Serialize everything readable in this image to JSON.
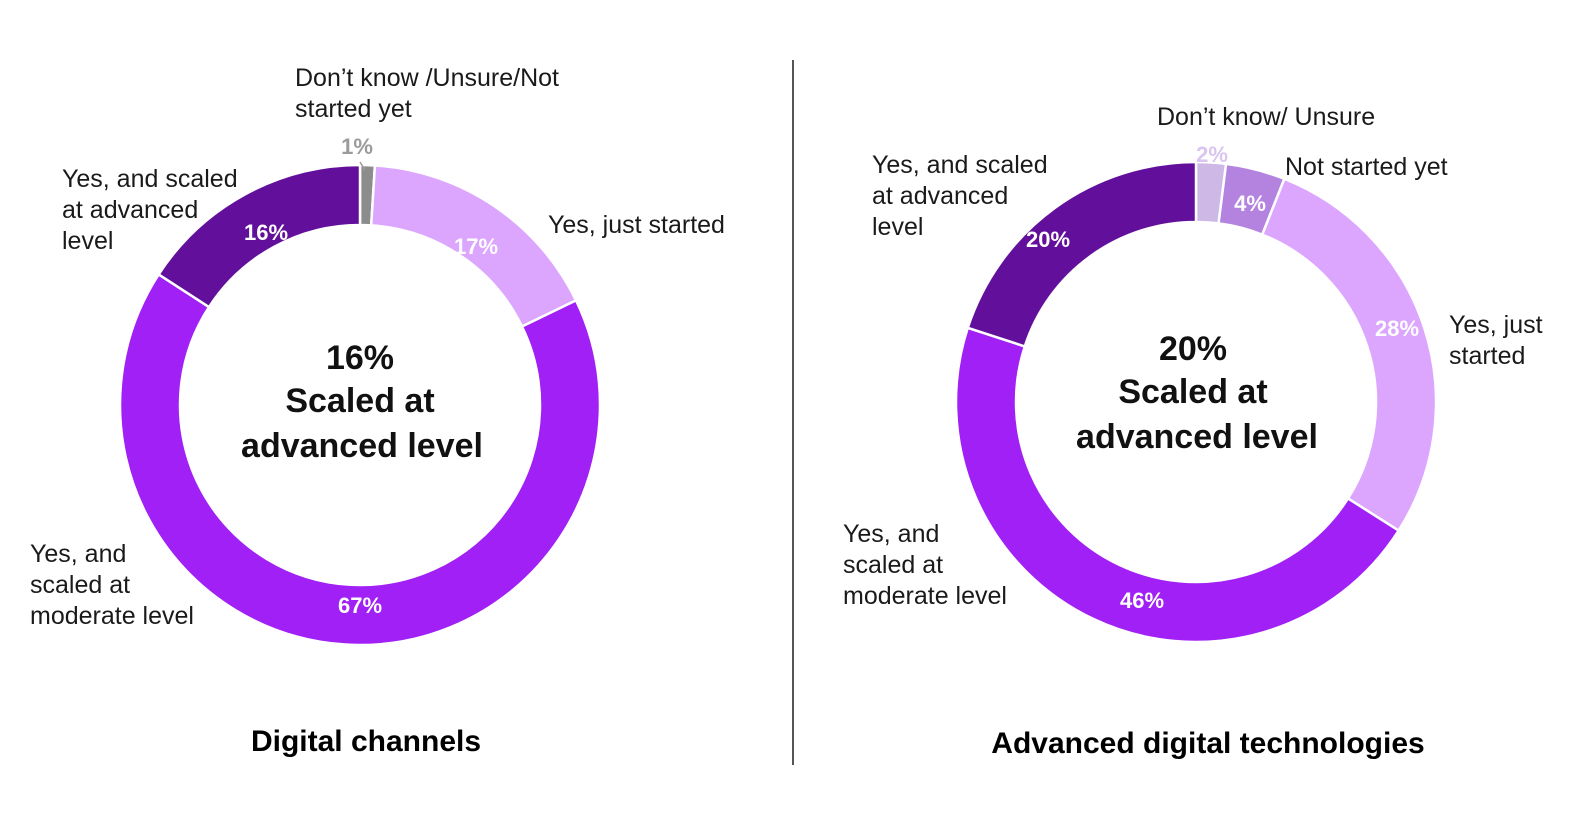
{
  "chart_data": [
    {
      "type": "pie",
      "title": "Digital channels",
      "center_value": "16%",
      "center_caption_line1": "Scaled at",
      "center_caption_line2": "advanced level",
      "slices": [
        {
          "key": "dontknow",
          "value": 1,
          "label_text": "1%",
          "name_lines": [
            "Don’t know /Unsure/Not",
            "started yet"
          ],
          "color": "#8c8c8c",
          "label_color": "#9b9b9b"
        },
        {
          "key": "juststarted",
          "value": 17,
          "label_text": "17%",
          "name_lines": [
            "Yes, just started"
          ],
          "color": "#dca6ff",
          "label_color": "#ffffff"
        },
        {
          "key": "moderate",
          "value": 67,
          "label_text": "67%",
          "name_lines": [
            "Yes, and",
            "scaled at",
            "moderate level"
          ],
          "color": "#a020f5",
          "label_color": "#ffffff"
        },
        {
          "key": "advanced",
          "value": 16,
          "label_text": "16%",
          "name_lines": [
            "Yes, and scaled",
            "at advanced",
            "level"
          ],
          "color": "#62109b",
          "label_color": "#ffffff"
        }
      ]
    },
    {
      "type": "pie",
      "title": "Advanced digital technologies",
      "center_value": "20%",
      "center_caption_line1": "Scaled at",
      "center_caption_line2": "advanced level",
      "slices": [
        {
          "key": "dontknow",
          "value": 2,
          "label_text": "2%",
          "name_lines": [
            "Don’t know/ Unsure"
          ],
          "color": "#cdb8e6",
          "label_color": "#d9c4f2"
        },
        {
          "key": "notstarted",
          "value": 4,
          "label_text": "4%",
          "name_lines": [
            "Not started yet"
          ],
          "color": "#b483e0",
          "label_color": "#ffffff"
        },
        {
          "key": "juststarted",
          "value": 28,
          "label_text": "28%",
          "name_lines": [
            "Yes, just",
            "started"
          ],
          "color": "#dca6ff",
          "label_color": "#ffffff"
        },
        {
          "key": "moderate",
          "value": 46,
          "label_text": "46%",
          "name_lines": [
            "Yes, and",
            "scaled at",
            "moderate level"
          ],
          "color": "#a020f5",
          "label_color": "#ffffff"
        },
        {
          "key": "advanced",
          "value": 20,
          "label_text": "20%",
          "name_lines": [
            "Yes, and scaled",
            "at advanced",
            "level"
          ],
          "color": "#62109b",
          "label_color": "#ffffff"
        }
      ]
    }
  ]
}
